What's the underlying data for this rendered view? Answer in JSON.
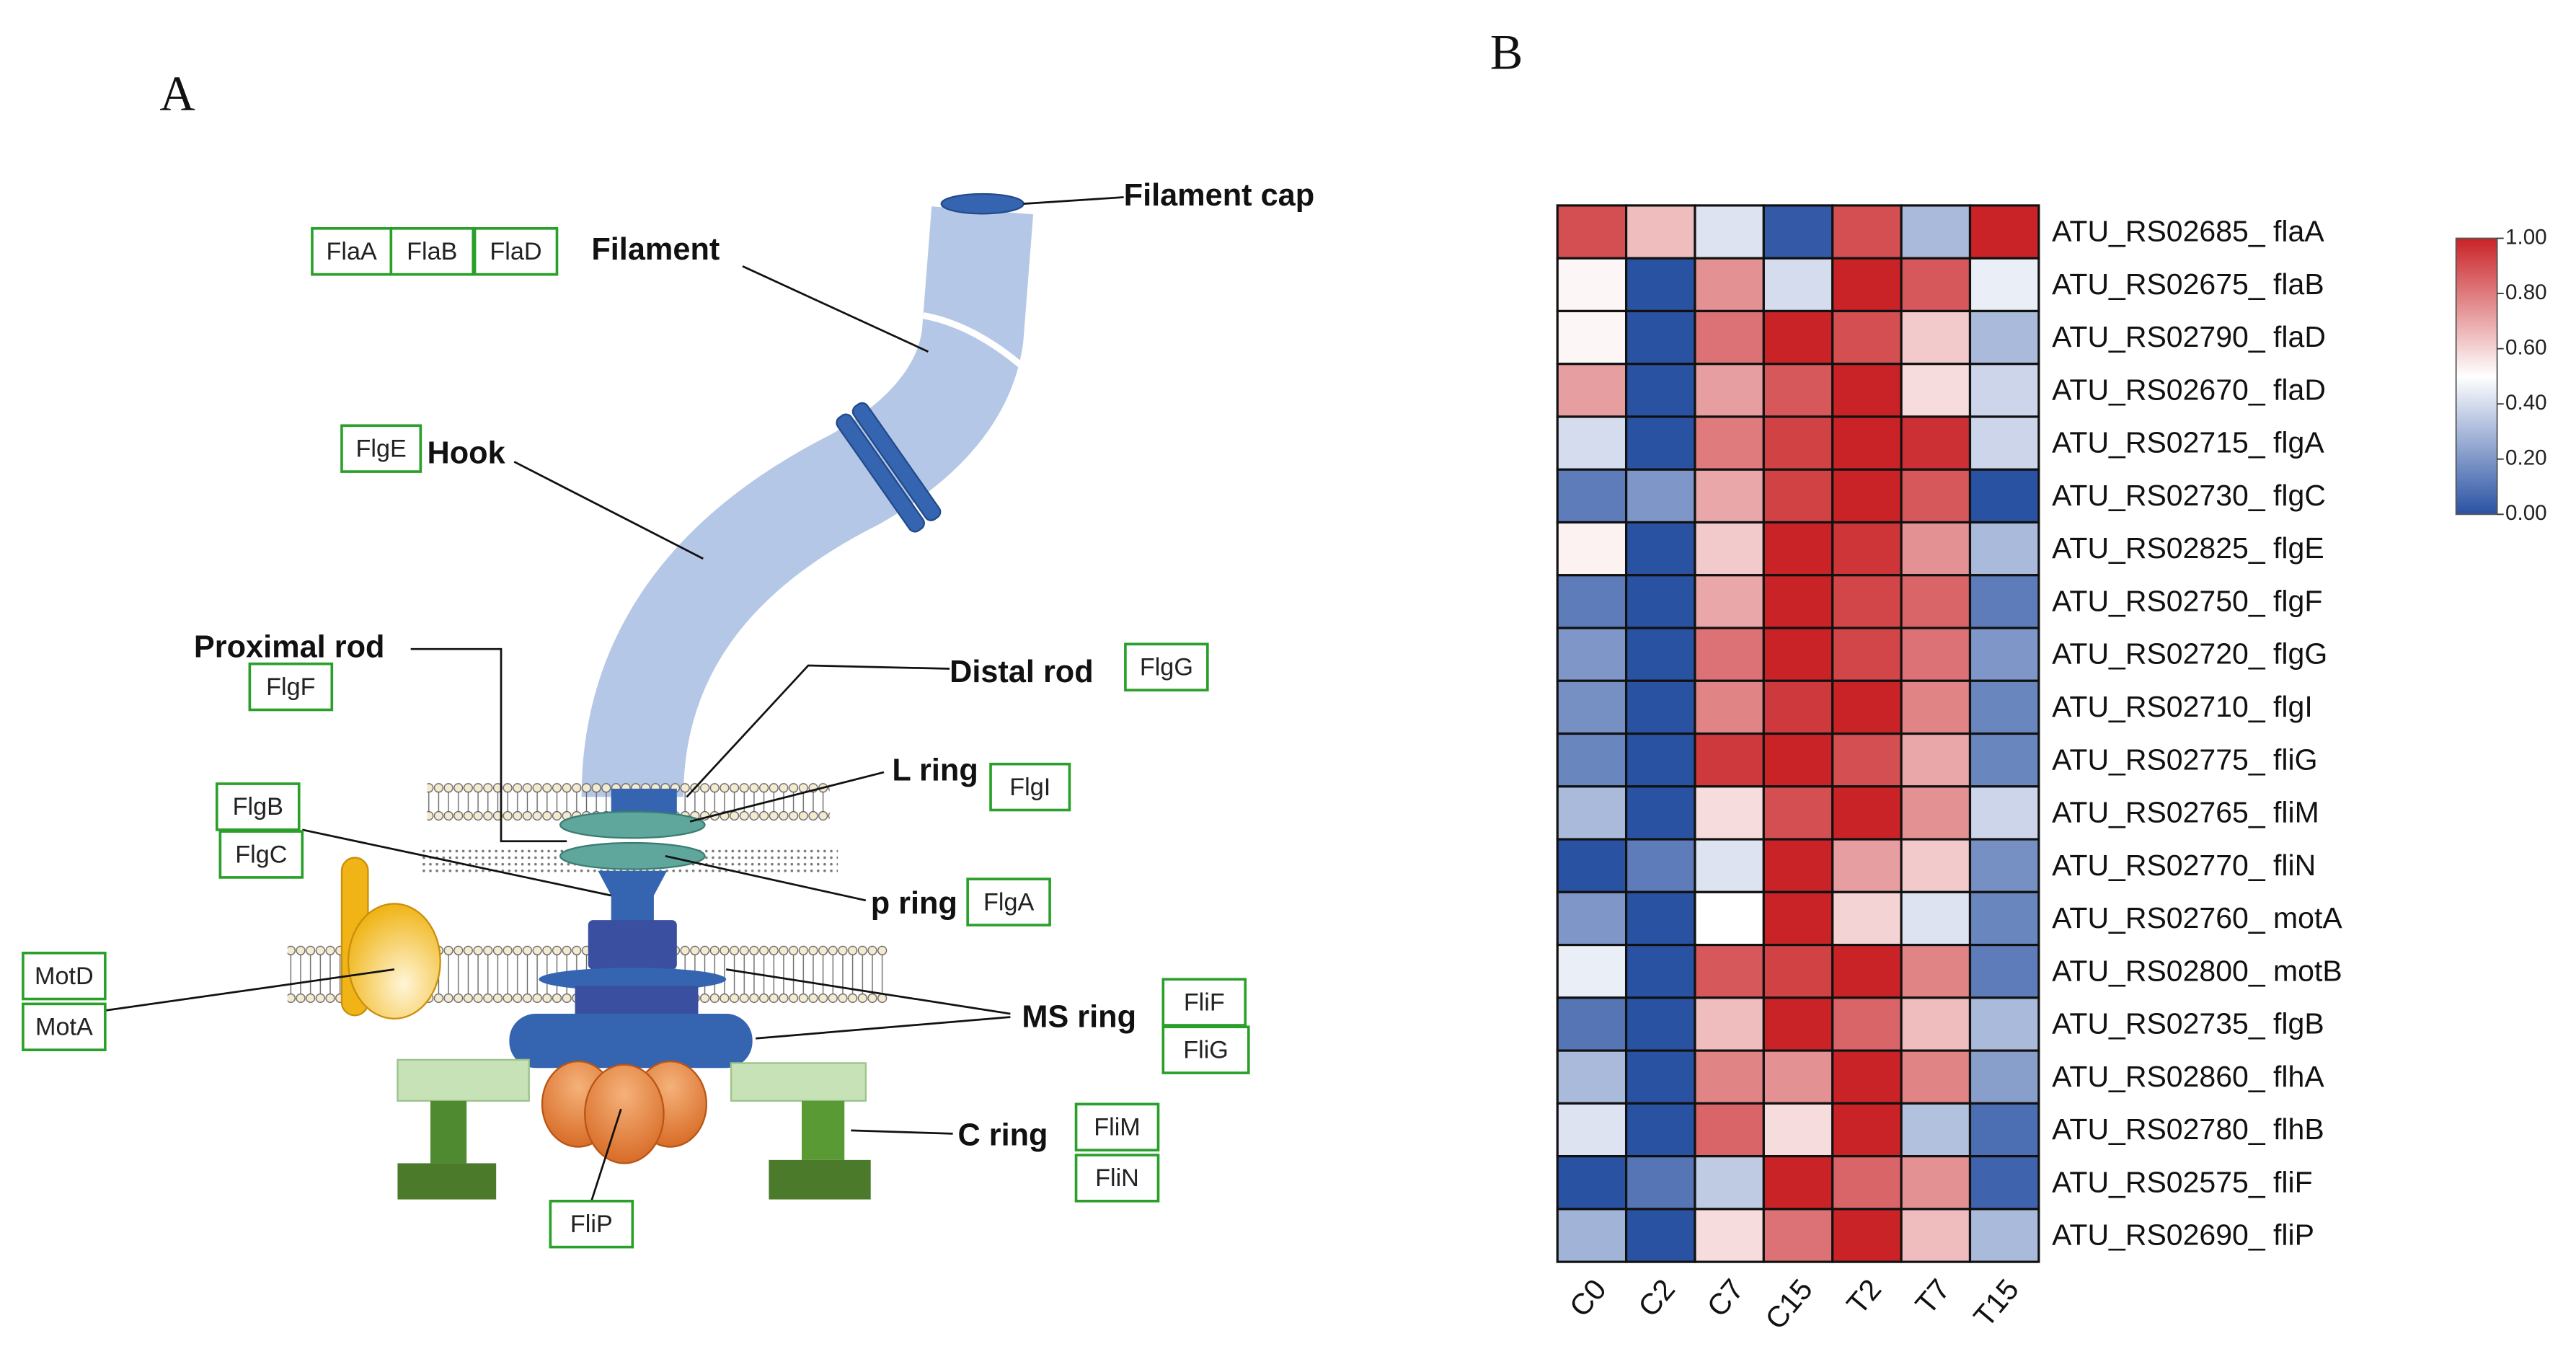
{
  "diagram": {
    "panel_label": "A",
    "components": [
      "Filament cap",
      "Filament",
      "Hook",
      "Proximal rod",
      "Distal rod",
      "L ring",
      "p ring",
      "MS ring",
      "C ring"
    ],
    "proteins": [
      "FlaA",
      "FlaB",
      "FlaD",
      "FlgE",
      "FlgF",
      "FlgG",
      "FlgI",
      "FlgB",
      "FlgC",
      "FlgA",
      "MotD",
      "MotA",
      "FliF",
      "FliG",
      "FliM",
      "FliN",
      "FliP"
    ]
  },
  "chart_data": {
    "type": "heatmap",
    "panel_label": "B",
    "categories": [
      "C0",
      "C2",
      "C7",
      "C15",
      "T2",
      "T7",
      "T15"
    ],
    "rows": [
      "ATU_RS02685_ flaA",
      "ATU_RS02675_ flaB",
      "ATU_RS02790_ flaD",
      "ATU_RS02670_ flaD",
      "ATU_RS02715_ flgA",
      "ATU_RS02730_ flgC",
      "ATU_RS02825_ flgE",
      "ATU_RS02750_ flgF",
      "ATU_RS02720_ flgG",
      "ATU_RS02710_ flgI",
      "ATU_RS02775_ fliG",
      "ATU_RS02765_ fliM",
      "ATU_RS02770_ fliN",
      "ATU_RS02760_ motA",
      "ATU_RS02800_ motB",
      "ATU_RS02735_ flgB",
      "ATU_RS02860_ flhA",
      "ATU_RS02780_ flhB",
      "ATU_RS02575_ fliF",
      "ATU_RS02690_ fliP"
    ],
    "values": [
      [
        0.9,
        0.65,
        0.42,
        0.02,
        0.9,
        0.3,
        1.0
      ],
      [
        0.52,
        0.0,
        0.75,
        0.4,
        1.0,
        0.88,
        0.45
      ],
      [
        0.52,
        0.0,
        0.82,
        1.0,
        0.9,
        0.62,
        0.3
      ],
      [
        0.72,
        0.0,
        0.72,
        0.88,
        1.0,
        0.58,
        0.38
      ],
      [
        0.4,
        0.0,
        0.8,
        0.93,
        1.0,
        0.97,
        0.38
      ],
      [
        0.12,
        0.2,
        0.7,
        0.93,
        1.0,
        0.88,
        0.0
      ],
      [
        0.53,
        0.0,
        0.62,
        1.0,
        0.96,
        0.75,
        0.3
      ],
      [
        0.12,
        0.0,
        0.7,
        1.0,
        0.92,
        0.85,
        0.12
      ],
      [
        0.2,
        0.0,
        0.82,
        1.0,
        0.92,
        0.82,
        0.2
      ],
      [
        0.18,
        0.0,
        0.78,
        0.95,
        1.0,
        0.78,
        0.15
      ],
      [
        0.15,
        0.0,
        0.95,
        1.0,
        0.9,
        0.7,
        0.15
      ],
      [
        0.3,
        0.0,
        0.58,
        0.9,
        1.0,
        0.75,
        0.38
      ],
      [
        0.0,
        0.12,
        0.42,
        1.0,
        0.72,
        0.62,
        0.18
      ],
      [
        0.2,
        0.0,
        0.5,
        1.0,
        0.6,
        0.42,
        0.15
      ],
      [
        0.45,
        0.0,
        0.88,
        0.93,
        1.0,
        0.78,
        0.12
      ],
      [
        0.1,
        0.0,
        0.65,
        1.0,
        0.85,
        0.65,
        0.3
      ],
      [
        0.3,
        0.0,
        0.78,
        0.75,
        1.0,
        0.78,
        0.22
      ],
      [
        0.42,
        0.0,
        0.85,
        0.58,
        1.0,
        0.32,
        0.08
      ],
      [
        0.0,
        0.1,
        0.35,
        1.0,
        0.85,
        0.75,
        0.05
      ],
      [
        0.28,
        0.0,
        0.58,
        0.82,
        1.0,
        0.65,
        0.3
      ]
    ],
    "colors": [
      "#2a52a3",
      "#ffffff",
      "#c92327"
    ],
    "clim": [
      0,
      1
    ],
    "cticks": [
      {
        "value": 0,
        "label": "0.00"
      },
      {
        "value": 0.2,
        "label": "0.20"
      },
      {
        "value": 0.4,
        "label": "0.40"
      },
      {
        "value": 0.6,
        "label": "0.60"
      },
      {
        "value": 0.8,
        "label": "0.80"
      },
      {
        "value": 1,
        "label": "1.00"
      }
    ]
  }
}
